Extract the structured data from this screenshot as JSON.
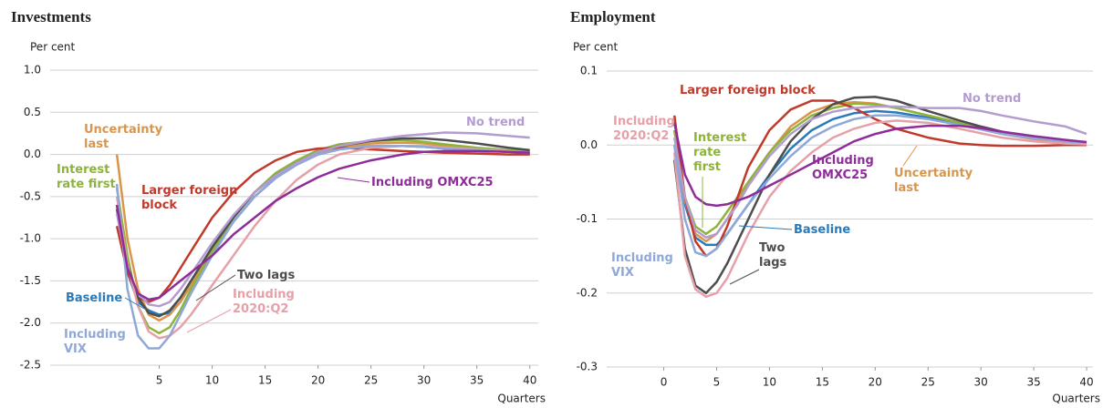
{
  "chart_data": [
    {
      "type": "line",
      "title": "Investments",
      "y_label": "Per cent",
      "x_label": "Quarters",
      "x": [
        1,
        2,
        3,
        4,
        5,
        6,
        7,
        8,
        10,
        12,
        14,
        16,
        18,
        20,
        22,
        25,
        28,
        30,
        32,
        35,
        38,
        40
      ],
      "xlim": [
        -5.3,
        40.8
      ],
      "xticks": [
        5,
        10,
        15,
        20,
        25,
        30,
        35,
        40
      ],
      "ylim": [
        -2.5,
        1.0
      ],
      "yticks": [
        {
          "value": 1.0,
          "label": "1.0"
        },
        0.5,
        {
          "value": 0,
          "label": "0.0"
        },
        -0.5,
        {
          "value": -1.0,
          "label": "-1.0"
        },
        -1.5,
        {
          "value": -2.0,
          "label": "-2.0"
        },
        -2.5
      ],
      "grid": true,
      "series": [
        {
          "name": "Baseline",
          "color": "#2a7ab9",
          "values": [
            -0.6,
            -1.4,
            -1.75,
            -1.85,
            -1.9,
            -1.88,
            -1.75,
            -1.55,
            -1.15,
            -0.8,
            -0.5,
            -0.28,
            -0.12,
            0,
            0.06,
            0.1,
            0.1,
            0.09,
            0.07,
            0.05,
            0.03,
            0.02
          ]
        },
        {
          "name": "Uncertainty last",
          "color": "#d9954a",
          "values": [
            0,
            -1.0,
            -1.6,
            -1.9,
            -1.97,
            -1.9,
            -1.75,
            -1.55,
            -1.1,
            -0.75,
            -0.45,
            -0.25,
            -0.1,
            0.02,
            0.08,
            0.13,
            0.14,
            0.13,
            0.1,
            0.07,
            0.04,
            0.02
          ]
        },
        {
          "name": "Interest rate first",
          "color": "#8db33c",
          "values": [
            -0.4,
            -1.2,
            -1.8,
            -2.05,
            -2.12,
            -2.05,
            -1.85,
            -1.6,
            -1.15,
            -0.75,
            -0.45,
            -0.22,
            -0.07,
            0.05,
            0.12,
            0.16,
            0.17,
            0.15,
            0.12,
            0.08,
            0.05,
            0.03
          ]
        },
        {
          "name": "Larger foreign block",
          "color": "#c0392b",
          "values": [
            -0.85,
            -1.4,
            -1.7,
            -1.75,
            -1.7,
            -1.55,
            -1.35,
            -1.15,
            -0.75,
            -0.45,
            -0.22,
            -0.07,
            0.03,
            0.07,
            0.08,
            0.06,
            0.04,
            0.03,
            0.02,
            0.01,
            0,
            0
          ]
        },
        {
          "name": "Two lags",
          "color": "#4d4d4d",
          "values": [
            -0.65,
            -1.3,
            -1.7,
            -1.88,
            -1.92,
            -1.85,
            -1.7,
            -1.5,
            -1.1,
            -0.75,
            -0.45,
            -0.25,
            -0.1,
            0.03,
            0.1,
            0.16,
            0.19,
            0.19,
            0.17,
            0.13,
            0.08,
            0.05
          ]
        },
        {
          "name": "Including 2020:Q2",
          "color": "#e6a0a8",
          "values": [
            -0.5,
            -1.3,
            -1.8,
            -2.1,
            -2.18,
            -2.15,
            -2.05,
            -1.9,
            -1.55,
            -1.2,
            -0.85,
            -0.55,
            -0.3,
            -0.12,
            0,
            0.08,
            0.1,
            0.1,
            0.08,
            0.06,
            0.04,
            0.02
          ]
        },
        {
          "name": "Including VIX",
          "color": "#8fa8d8",
          "values": [
            -0.35,
            -1.6,
            -2.15,
            -2.3,
            -2.3,
            -2.15,
            -1.9,
            -1.65,
            -1.2,
            -0.8,
            -0.5,
            -0.28,
            -0.12,
            0,
            0.06,
            0.1,
            0.1,
            0.09,
            0.07,
            0.05,
            0.03,
            0.02
          ]
        },
        {
          "name": "No trend",
          "color": "#b39cd0",
          "values": [
            -0.7,
            -1.35,
            -1.65,
            -1.78,
            -1.8,
            -1.75,
            -1.6,
            -1.42,
            -1.05,
            -0.72,
            -0.45,
            -0.25,
            -0.1,
            0.03,
            0.1,
            0.17,
            0.22,
            0.24,
            0.26,
            0.25,
            0.22,
            0.2
          ]
        },
        {
          "name": "Including OMXC25",
          "color": "#8e2c9a",
          "values": [
            -0.6,
            -1.35,
            -1.65,
            -1.72,
            -1.7,
            -1.6,
            -1.5,
            -1.4,
            -1.2,
            -0.95,
            -0.75,
            -0.55,
            -0.4,
            -0.27,
            -0.17,
            -0.07,
            0,
            0.03,
            0.04,
            0.04,
            0.03,
            0.02
          ]
        }
      ]
    },
    {
      "type": "line",
      "title": "Employment",
      "y_label": "Per cent",
      "x_label": "Quarters",
      "x": [
        1,
        2,
        3,
        4,
        5,
        6,
        7,
        8,
        10,
        12,
        14,
        16,
        18,
        20,
        22,
        25,
        28,
        30,
        32,
        35,
        38,
        40
      ],
      "xlim": [
        -5.4,
        40.6
      ],
      "xticks": [
        0,
        5,
        10,
        15,
        20,
        25,
        30,
        35,
        40
      ],
      "ylim": [
        -0.3,
        0.1
      ],
      "yticks": [
        0.1,
        {
          "value": 0,
          "label": "0.0"
        },
        -0.1,
        -0.2,
        -0.3
      ],
      "grid": true,
      "series": [
        {
          "name": "Baseline",
          "color": "#2a7ab9",
          "values": [
            0,
            -0.08,
            -0.125,
            -0.135,
            -0.135,
            -0.12,
            -0.1,
            -0.08,
            -0.04,
            -0.005,
            0.02,
            0.035,
            0.043,
            0.046,
            0.044,
            0.037,
            0.028,
            0.022,
            0.016,
            0.01,
            0.005,
            0.003
          ]
        },
        {
          "name": "Uncertainty last",
          "color": "#d9954a",
          "values": [
            0.02,
            -0.075,
            -0.12,
            -0.13,
            -0.12,
            -0.1,
            -0.075,
            -0.05,
            -0.01,
            0.025,
            0.045,
            0.055,
            0.058,
            0.056,
            0.05,
            0.04,
            0.03,
            0.022,
            0.015,
            0.008,
            0.004,
            0.002
          ]
        },
        {
          "name": "Interest rate first",
          "color": "#8db33c",
          "values": [
            0.02,
            -0.07,
            -0.11,
            -0.12,
            -0.11,
            -0.09,
            -0.07,
            -0.05,
            -0.01,
            0.02,
            0.04,
            0.05,
            0.056,
            0.055,
            0.05,
            0.04,
            0.03,
            0.022,
            0.016,
            0.01,
            0.005,
            0.003
          ]
        },
        {
          "name": "Larger foreign block",
          "color": "#c0392b",
          "values": [
            0.04,
            -0.07,
            -0.13,
            -0.15,
            -0.14,
            -0.11,
            -0.07,
            -0.03,
            0.02,
            0.048,
            0.06,
            0.06,
            0.05,
            0.035,
            0.022,
            0.01,
            0.002,
            0,
            -0.001,
            -0.001,
            0,
            0
          ]
        },
        {
          "name": "Two lags",
          "color": "#4d4d4d",
          "values": [
            -0.02,
            -0.14,
            -0.19,
            -0.2,
            -0.185,
            -0.16,
            -0.13,
            -0.1,
            -0.04,
            0.005,
            0.035,
            0.055,
            0.064,
            0.065,
            0.06,
            0.046,
            0.033,
            0.025,
            0.018,
            0.01,
            0.005,
            0.002
          ]
        },
        {
          "name": "Including 2020:Q2",
          "color": "#e6a0a8",
          "values": [
            -0.01,
            -0.15,
            -0.195,
            -0.205,
            -0.2,
            -0.18,
            -0.15,
            -0.12,
            -0.07,
            -0.035,
            -0.01,
            0.01,
            0.022,
            0.03,
            0.033,
            0.03,
            0.022,
            0.016,
            0.01,
            0.005,
            0.002,
            0.001
          ]
        },
        {
          "name": "Including VIX",
          "color": "#8fa8d8",
          "values": [
            0,
            -0.1,
            -0.145,
            -0.15,
            -0.14,
            -0.12,
            -0.1,
            -0.08,
            -0.045,
            -0.015,
            0.01,
            0.025,
            0.035,
            0.04,
            0.04,
            0.035,
            0.027,
            0.021,
            0.015,
            0.009,
            0.005,
            0.003
          ]
        },
        {
          "name": "No trend",
          "color": "#b39cd0",
          "values": [
            0.01,
            -0.07,
            -0.115,
            -0.125,
            -0.12,
            -0.1,
            -0.08,
            -0.055,
            -0.015,
            0.015,
            0.035,
            0.045,
            0.05,
            0.052,
            0.052,
            0.05,
            0.05,
            0.046,
            0.04,
            0.032,
            0.025,
            0.015
          ]
        },
        {
          "name": "Including OMXC25",
          "color": "#8e2c9a",
          "values": [
            0.03,
            -0.04,
            -0.07,
            -0.08,
            -0.082,
            -0.08,
            -0.075,
            -0.07,
            -0.055,
            -0.04,
            -0.025,
            -0.01,
            0.005,
            0.015,
            0.022,
            0.026,
            0.026,
            0.023,
            0.018,
            0.012,
            0.007,
            0.004
          ]
        }
      ]
    }
  ]
}
